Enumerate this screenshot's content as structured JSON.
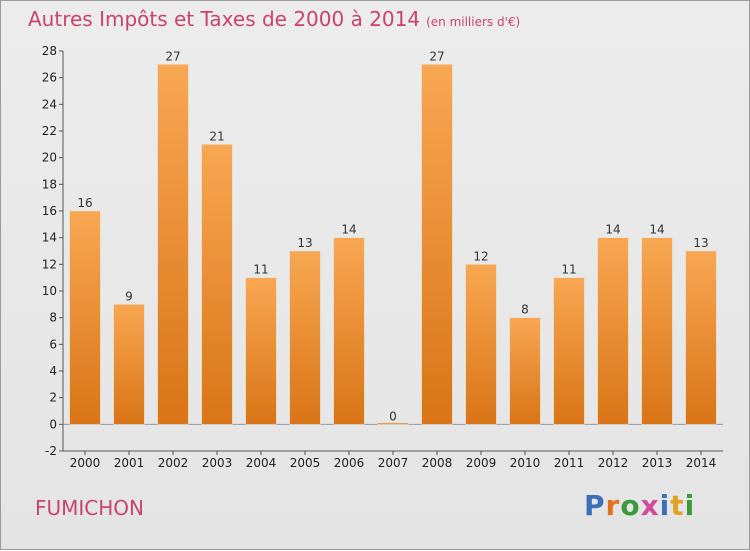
{
  "page": {
    "commune": "FUMICHON",
    "logo": {
      "letters": [
        "P",
        "r",
        "o",
        "x",
        "i",
        "t",
        "i"
      ],
      "colors": [
        "#3b6fb6",
        "#e0731f",
        "#3a9a3a",
        "#d24a9a",
        "#3b6fb6",
        "#e0a21f",
        "#3a9a3a"
      ]
    }
  },
  "chart_data": {
    "type": "bar",
    "title": "Autres Impôts et Taxes de 2000 à 2014",
    "subtitle": "(en milliers d'€)",
    "xlabel": "",
    "ylabel": "",
    "categories": [
      "2000",
      "2001",
      "2002",
      "2003",
      "2004",
      "2005",
      "2006",
      "2007",
      "2008",
      "2009",
      "2010",
      "2011",
      "2012",
      "2013",
      "2014"
    ],
    "values": [
      16,
      9,
      27,
      21,
      11,
      13,
      14,
      0,
      27,
      12,
      8,
      11,
      14,
      14,
      13
    ],
    "ylim": [
      -2,
      28
    ],
    "yticks": [
      -2,
      0,
      2,
      4,
      6,
      8,
      10,
      12,
      14,
      16,
      18,
      20,
      22,
      24,
      26,
      28
    ],
    "grid": false,
    "bar_color": "#f0952f"
  }
}
